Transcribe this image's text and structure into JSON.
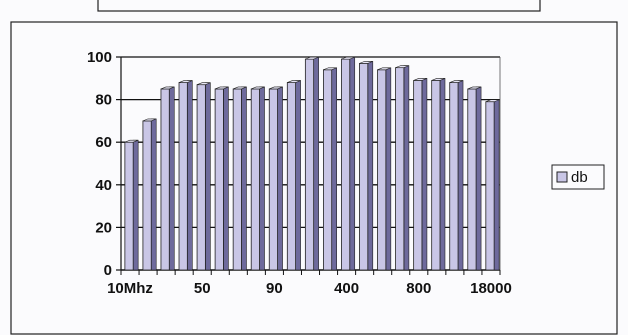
{
  "chart_data": {
    "type": "bar",
    "title": "",
    "xlabel": "",
    "ylabel": "",
    "categories": [
      "10Mhz",
      "",
      "",
      "",
      "50",
      "",
      "",
      "",
      "90",
      "",
      "",
      "",
      "400",
      "",
      "",
      "",
      "800",
      "",
      "",
      "",
      "18000"
    ],
    "series": [
      {
        "name": "db",
        "values": [
          60,
          70,
          85,
          88,
          87,
          85,
          85,
          85,
          85,
          88,
          99,
          94,
          99,
          97,
          94,
          95,
          89,
          89,
          88,
          85,
          79
        ]
      }
    ],
    "ylim": [
      0,
      100
    ],
    "yticks": [
      0,
      20,
      40,
      60,
      80,
      100
    ],
    "grid": true,
    "legend_position": "right",
    "colors": {
      "bar_face": "#c9c6e6",
      "bar_side": "#6e6a9c",
      "bar_top": "#e7e5f5",
      "frame": "#222222"
    }
  }
}
